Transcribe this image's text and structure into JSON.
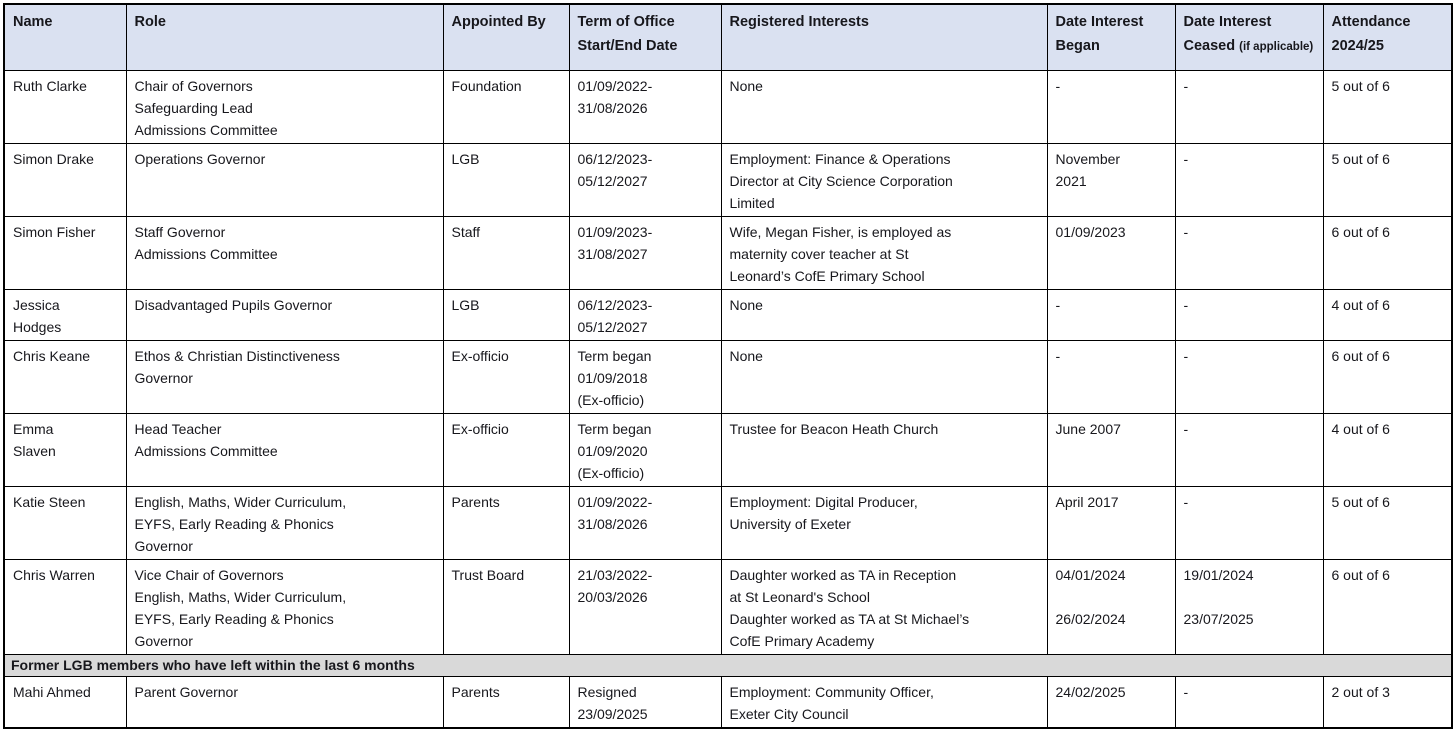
{
  "table": {
    "columns": [
      {
        "label": "Name"
      },
      {
        "label": "Role"
      },
      {
        "label": "Appointed By"
      },
      {
        "label": "Term of Office Start/End Date"
      },
      {
        "label": "Registered Interests"
      },
      {
        "label": "Date Interest Began"
      },
      {
        "label": "Date Interest Ceased ",
        "suffix": "(if applicable)"
      },
      {
        "label": "Attendance 2024/25"
      }
    ],
    "rows": [
      {
        "name": "Ruth Clarke",
        "role": "Chair of Governors\nSafeguarding Lead\nAdmissions Committee",
        "appointed_by": "Foundation",
        "term": "01/09/2022-\n31/08/2026",
        "interests": "None",
        "began": "-",
        "ceased": "-",
        "attendance": "5 out of 6"
      },
      {
        "name": "Simon Drake",
        "role": "Operations Governor",
        "appointed_by": "LGB",
        "term": "06/12/2023-\n05/12/2027",
        "interests": "Employment: Finance & Operations\nDirector at City Science Corporation\nLimited",
        "began": "November\n2021",
        "ceased": "-",
        "attendance": "5 out of 6"
      },
      {
        "name": "Simon Fisher",
        "role": "Staff Governor\nAdmissions Committee",
        "appointed_by": "Staff",
        "term": "01/09/2023-\n31/08/2027",
        "interests": "Wife, Megan Fisher, is employed as\nmaternity cover teacher at St\nLeonard’s CofE Primary School",
        "began": "01/09/2023",
        "ceased": "-",
        "attendance": "6 out of 6"
      },
      {
        "name": "Jessica\nHodges",
        "role": "Disadvantaged Pupils Governor",
        "appointed_by": "LGB",
        "term": "06/12/2023-\n05/12/2027",
        "interests": "None",
        "began": "-",
        "ceased": "-",
        "attendance": "4 out of 6"
      },
      {
        "name": "Chris Keane",
        "role": "Ethos & Christian Distinctiveness\nGovernor",
        "appointed_by": "Ex-officio",
        "term": "Term began\n01/09/2018\n(Ex-officio)",
        "interests": "None",
        "began": "-",
        "ceased": "-",
        "attendance": "6 out of 6"
      },
      {
        "name": "Emma\nSlaven",
        "role": "Head Teacher\nAdmissions Committee",
        "appointed_by": "Ex-officio",
        "term": "Term began\n01/09/2020\n(Ex-officio)",
        "interests": "Trustee for Beacon Heath Church",
        "began": "June 2007",
        "ceased": "-",
        "attendance": "4 out of 6"
      },
      {
        "name": "Katie Steen",
        "role": "English, Maths, Wider Curriculum,\nEYFS, Early Reading & Phonics\nGovernor",
        "appointed_by": "Parents",
        "term": "01/09/2022-\n31/08/2026",
        "interests": "Employment: Digital Producer,\nUniversity of Exeter",
        "began": "April 2017",
        "ceased": "-",
        "attendance": "5 out of 6"
      },
      {
        "name": "Chris Warren",
        "role": "Vice Chair of Governors\nEnglish, Maths, Wider Curriculum,\nEYFS, Early Reading & Phonics\nGovernor",
        "appointed_by": "Trust Board",
        "term": "21/03/2022-\n20/03/2026",
        "interests": "Daughter worked as TA in Reception\nat St Leonard's School\nDaughter worked as TA at St Michael’s\nCofE Primary Academy",
        "began": "04/01/2024\n\n26/02/2024",
        "ceased": "19/01/2024\n\n23/07/2025",
        "attendance": "6 out of 6"
      }
    ],
    "section_label": "Former LGB members who have left within the last 6 months",
    "former_rows": [
      {
        "name": "Mahi Ahmed",
        "role": "Parent Governor",
        "appointed_by": "Parents",
        "term": "Resigned\n23/09/2025",
        "interests": "Employment: Community Officer,\nExeter City Council",
        "began": "24/02/2025",
        "ceased": "-",
        "attendance": "2 out of 3"
      }
    ]
  },
  "colors": {
    "header_bg": "#dae1f1",
    "section_bg": "#d9d9d9",
    "border": "#000000",
    "text": "#17171c"
  }
}
